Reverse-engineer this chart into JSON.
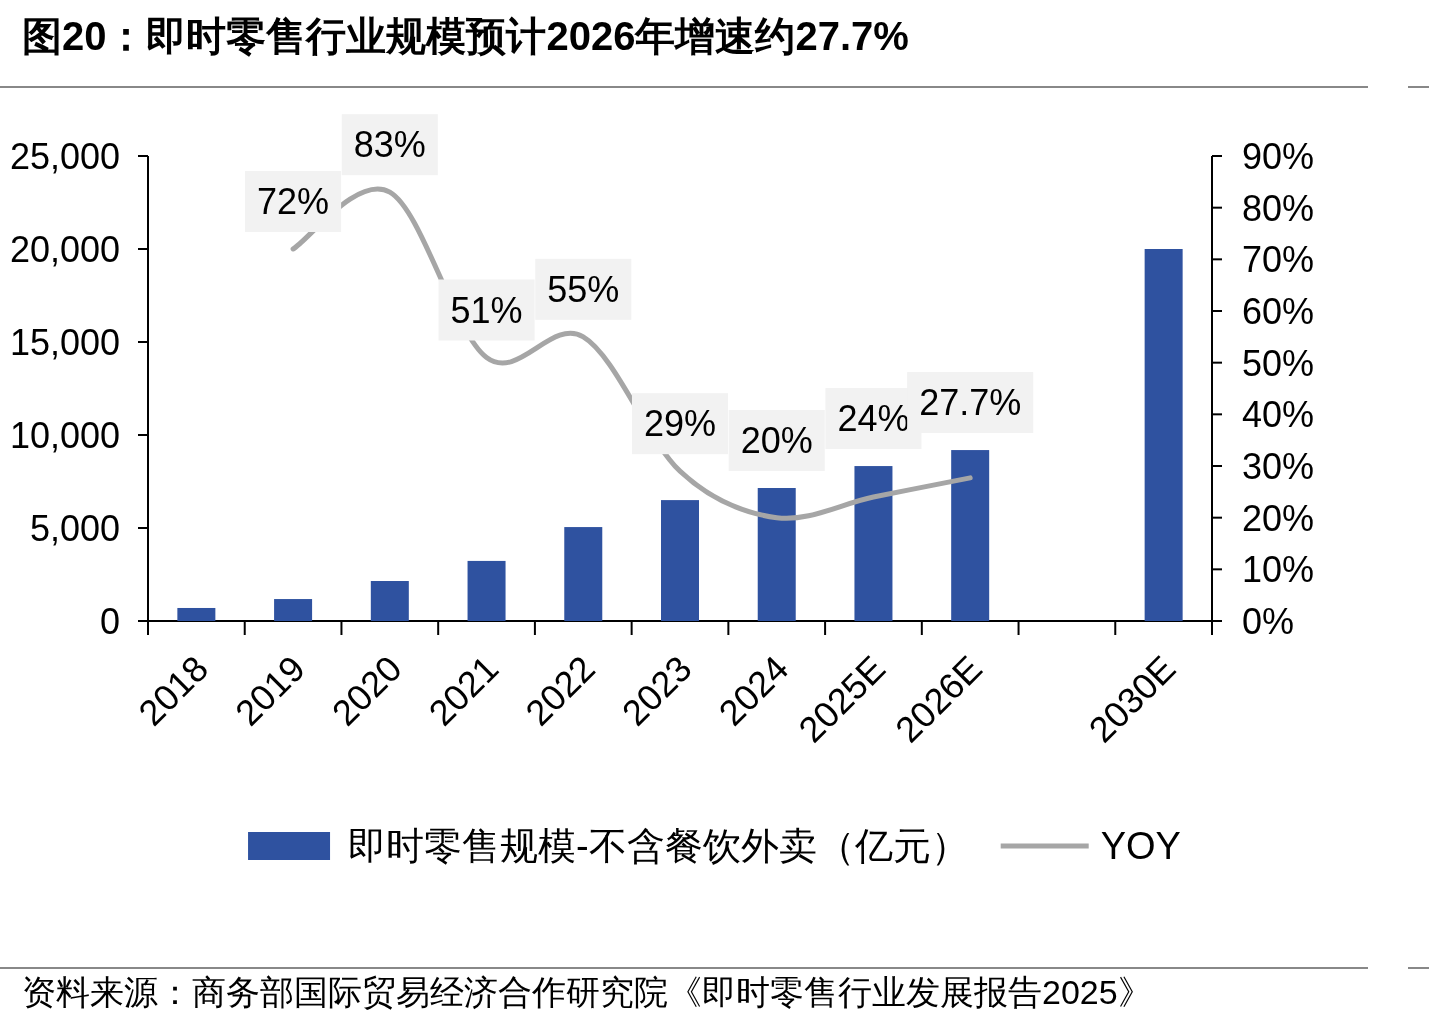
{
  "chart_data": {
    "type": "bar",
    "title": "图20：即时零售行业规模预计2026年增速约27.7%",
    "categories": [
      "2018",
      "2019",
      "2020",
      "2021",
      "2022",
      "2023",
      "2024",
      "2025E",
      "2026E",
      null,
      "2030E"
    ],
    "series": [
      {
        "name": "即时零售规模-不含餐饮外卖（亿元）",
        "color": "#2f52a0",
        "values": [
          700,
          1180,
          2150,
          3230,
          5050,
          6500,
          7150,
          8330,
          9190,
          null,
          20000
        ]
      },
      {
        "name": "YOY",
        "type": "line",
        "axis": "y2",
        "color": "#a6a6a6",
        "values": [
          null,
          72,
          83,
          51,
          55,
          29,
          20,
          24,
          27.7,
          null,
          null
        ],
        "value_labels": [
          null,
          "72%",
          "83%",
          "51%",
          "55%",
          "29%",
          "20%",
          "24%",
          "27.7%",
          null,
          null
        ]
      }
    ],
    "ylim": [
      0,
      25000
    ],
    "yticks": [
      {
        "value": 0,
        "label": "0"
      },
      {
        "value": 5000,
        "label": "5,000"
      },
      {
        "value": 10000,
        "label": "10,000"
      },
      {
        "value": 15000,
        "label": "15,000"
      },
      {
        "value": 20000,
        "label": "20,000"
      },
      {
        "value": 25000,
        "label": "25,000"
      }
    ],
    "y2lim": [
      0,
      90
    ],
    "y2ticks": [
      {
        "value": 0,
        "label": "0%"
      },
      {
        "value": 10,
        "label": "10%"
      },
      {
        "value": 20,
        "label": "20%"
      },
      {
        "value": 30,
        "label": "30%"
      },
      {
        "value": 40,
        "label": "40%"
      },
      {
        "value": 50,
        "label": "50%"
      },
      {
        "value": 60,
        "label": "60%"
      },
      {
        "value": 70,
        "label": "70%"
      },
      {
        "value": 80,
        "label": "80%"
      },
      {
        "value": 90,
        "label": "90%"
      }
    ],
    "legend": "bottom",
    "annotations": [
      "资料来源：商务部国际贸易经济合作研究院《即时零售行业发展报告2025》"
    ]
  }
}
